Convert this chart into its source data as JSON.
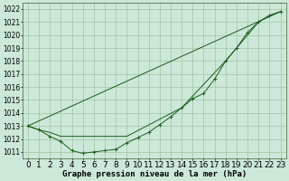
{
  "title": "Graphe pression niveau de la mer (hPa)",
  "background_color": "#cce8d8",
  "grid_color": "#99bb99",
  "line_color": "#1a5c1a",
  "xlim": [
    -0.5,
    23.5
  ],
  "ylim": [
    1010.5,
    1022.5
  ],
  "yticks": [
    1011,
    1012,
    1013,
    1014,
    1015,
    1016,
    1017,
    1018,
    1019,
    1020,
    1021,
    1022
  ],
  "xticks": [
    0,
    1,
    2,
    3,
    4,
    5,
    6,
    7,
    8,
    9,
    10,
    11,
    12,
    13,
    14,
    15,
    16,
    17,
    18,
    19,
    20,
    21,
    22,
    23
  ],
  "series_markers": {
    "x": [
      0,
      1,
      2,
      3,
      4,
      5,
      6,
      7,
      8,
      9,
      10,
      11,
      12,
      13,
      14,
      15,
      16,
      17,
      18,
      19,
      20,
      21,
      22,
      23
    ],
    "y": [
      1013.0,
      1012.7,
      1012.2,
      1011.8,
      1011.1,
      1010.9,
      1011.0,
      1011.1,
      1011.2,
      1011.7,
      1012.1,
      1012.5,
      1013.1,
      1013.7,
      1014.4,
      1015.1,
      1015.5,
      1016.6,
      1018.0,
      1019.0,
      1020.2,
      1021.0,
      1021.5,
      1021.8
    ]
  },
  "series_smooth": {
    "x": [
      0,
      1,
      2,
      3,
      9,
      14,
      18,
      21,
      22,
      23
    ],
    "y": [
      1013.0,
      1012.7,
      1012.5,
      1012.2,
      1012.2,
      1014.4,
      1018.0,
      1021.0,
      1021.5,
      1021.8
    ]
  },
  "series_straight": {
    "x": [
      0,
      23
    ],
    "y": [
      1013.0,
      1021.8
    ]
  },
  "xlabel_fontsize": 6.5,
  "ylabel_fontsize": 5.5,
  "title_fontsize": 6.5
}
